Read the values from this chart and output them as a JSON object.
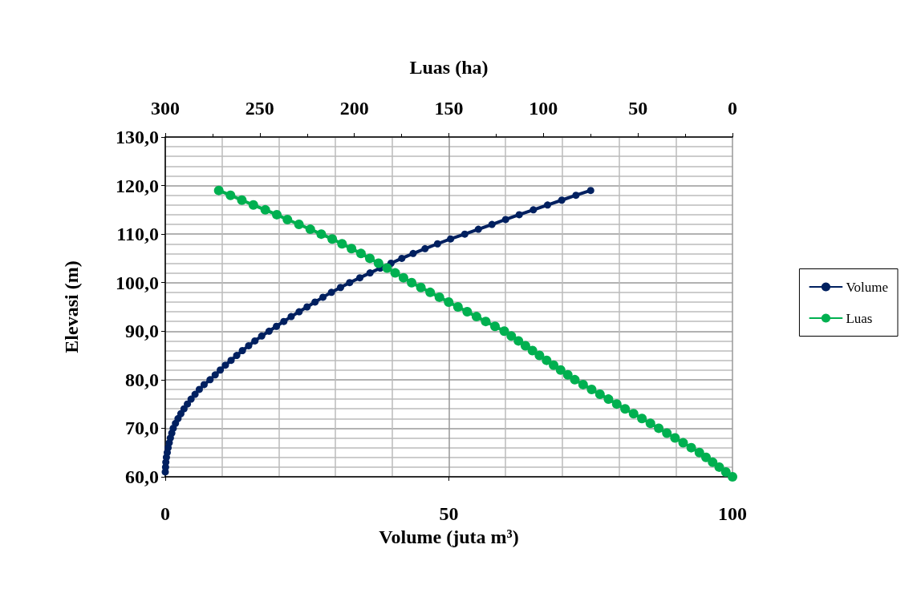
{
  "chart_data": {
    "type": "line",
    "xlabel": "Volume (juta m³)",
    "ylabel": "Elevasi (m)",
    "x2label": "Luas (ha)",
    "xlim": [
      0,
      100
    ],
    "xticks": [
      0,
      50,
      100
    ],
    "x2lim": [
      300,
      0
    ],
    "x2ticks": [
      300,
      250,
      200,
      150,
      100,
      50,
      0
    ],
    "ylim": [
      60,
      130
    ],
    "yticks": [
      {
        "value": 60,
        "label": "60,0"
      },
      {
        "value": 70,
        "label": "70,0"
      },
      {
        "value": 80,
        "label": "80,0"
      },
      {
        "value": 90,
        "label": "90,0"
      },
      {
        "value": 100,
        "label": "100,0"
      },
      {
        "value": 110,
        "label": "110,0"
      },
      {
        "value": 120,
        "label": "120,0"
      },
      {
        "value": 130,
        "label": "130,0"
      }
    ],
    "grid": true,
    "legend": "right",
    "marker": "circle",
    "line_style": "solid",
    "series": [
      {
        "name": "Volume",
        "color": "#002060",
        "x": [
          0,
          0.05,
          0.1,
          0.2,
          0.35,
          0.5,
          0.7,
          0.9,
          1.15,
          1.4,
          1.8,
          2.25,
          2.75,
          3.3,
          3.9,
          4.55,
          5.25,
          6.0,
          6.85,
          7.9,
          8.8,
          9.7,
          10.6,
          11.6,
          12.6,
          13.6,
          14.7,
          15.8,
          17.0,
          18.3,
          19.6,
          20.9,
          22.2,
          23.6,
          25.0,
          26.4,
          27.8,
          29.3,
          30.9,
          32.5,
          34.3,
          36.1,
          37.9,
          39.8,
          41.7,
          43.7,
          45.8,
          48.0,
          50.3,
          52.8,
          55.2,
          57.6,
          60.0,
          62.4,
          64.9,
          67.4,
          69.9,
          72.4,
          75.0
        ],
        "values": [
          61,
          62,
          63,
          64,
          65,
          66,
          67,
          68,
          69,
          70,
          71,
          72,
          73,
          74,
          75,
          76,
          77,
          78,
          79,
          80,
          81,
          82,
          83,
          84,
          85,
          86,
          87,
          88,
          89,
          90,
          91,
          92,
          93,
          94,
          95,
          96,
          97,
          98,
          99,
          100,
          101,
          102,
          103,
          104,
          105,
          106,
          107,
          108,
          109,
          110,
          111,
          112,
          113,
          114,
          115,
          116,
          117,
          118,
          119
        ]
      },
      {
        "name": "Luas",
        "color": "#00b050",
        "axis": "x2",
        "x": [
          0,
          3.5,
          7,
          10.5,
          14,
          17.5,
          21.8,
          26.1,
          30.4,
          34.7,
          39,
          43.4,
          47.9,
          52.3,
          56.8,
          61.2,
          65.6,
          70.1,
          74.5,
          79.0,
          83.4,
          87.1,
          90.9,
          94.6,
          98.3,
          102.1,
          105.8,
          109.5,
          113.2,
          117.0,
          120.7,
          125.6,
          130.5,
          135.4,
          140.3,
          145.2,
          150.1,
          155.0,
          159.9,
          164.8,
          169.7,
          174.0,
          178.4,
          182.7,
          187.2,
          191.8,
          196.5,
          201.5,
          206.5,
          211.7,
          217.5,
          223.3,
          229.3,
          235.4,
          241.0,
          247.1,
          253.4,
          259.5,
          265.5,
          271.7
        ],
        "values": [
          60,
          61,
          62,
          63,
          64,
          65,
          66,
          67,
          68,
          69,
          70,
          71,
          72,
          73,
          74,
          75,
          76,
          77,
          78,
          79,
          80,
          81,
          82,
          83,
          84,
          85,
          86,
          87,
          88,
          89,
          90,
          91,
          92,
          93,
          94,
          95,
          96,
          97,
          98,
          99,
          100,
          101,
          102,
          103,
          104,
          105,
          106,
          107,
          108,
          109,
          110,
          111,
          112,
          113,
          114,
          115,
          116,
          117,
          118,
          119
        ]
      }
    ]
  }
}
